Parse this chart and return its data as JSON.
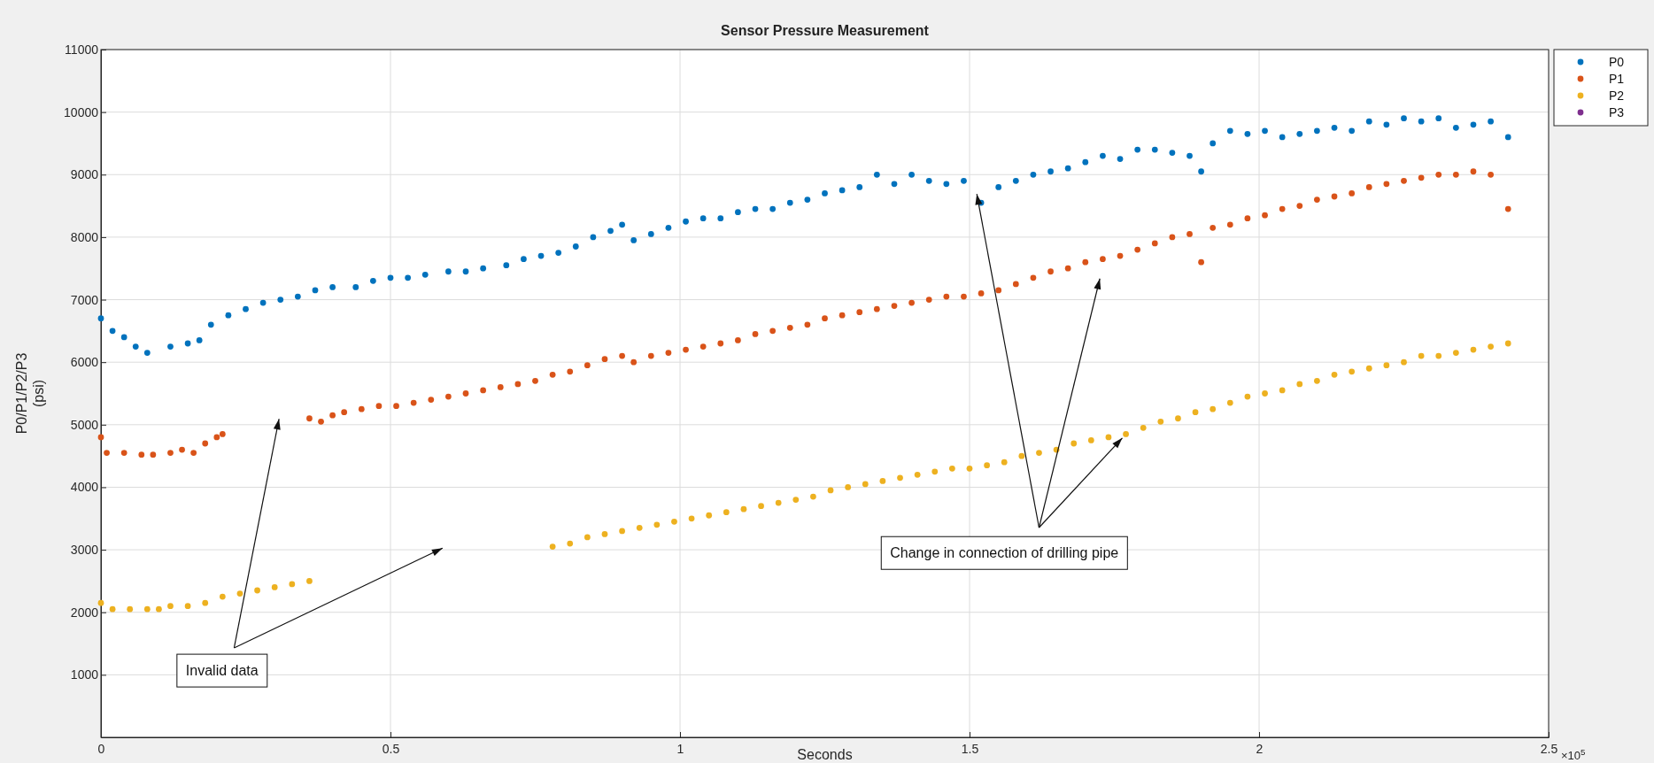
{
  "chart_data": {
    "type": "scatter",
    "title": "Sensor Pressure Measurement",
    "xlabel": "Seconds",
    "ylabel": "P0/P1/P2/P3\n(psi)",
    "xlim": [
      0,
      2.5
    ],
    "xticks": [
      0,
      0.5,
      1,
      1.5,
      2,
      2.5
    ],
    "ylim": [
      0,
      11000
    ],
    "yticks": [
      1000,
      2000,
      3000,
      4000,
      5000,
      6000,
      7000,
      8000,
      9000,
      10000,
      11000
    ],
    "grid": true,
    "legend": "top right",
    "marker": "circle",
    "annotations": [
      "×10$^{5}$",
      "Invalid data",
      {
        "text": "Change in connection of drilling pipe",
        "x": 1.77,
        "y": 4850
      }
    ],
    "series": [
      {
        "name": "P0",
        "color": "#0072bd",
        "x": [
          0,
          0.02,
          0.04,
          0.06,
          0.08,
          0.12,
          0.15,
          0.17,
          0.19,
          0.22,
          0.25,
          0.28,
          0.31,
          0.34,
          0.37,
          0.4,
          0.44,
          0.47,
          0.5,
          0.53,
          0.56,
          0.6,
          0.63,
          0.66,
          0.7,
          0.73,
          0.76,
          0.79,
          0.82,
          0.85,
          0.88,
          0.9,
          0.92,
          0.95,
          0.98,
          1.01,
          1.04,
          1.07,
          1.1,
          1.13,
          1.16,
          1.19,
          1.22,
          1.25,
          1.28,
          1.31,
          1.34,
          1.37,
          1.4,
          1.43,
          1.46,
          1.49,
          1.52,
          1.55,
          1.58,
          1.61,
          1.64,
          1.67,
          1.7,
          1.73,
          1.76,
          1.79,
          1.82,
          1.85,
          1.88,
          1.9,
          1.92,
          1.95,
          1.98,
          2.01,
          2.04,
          2.07,
          2.1,
          2.13,
          2.16,
          2.19,
          2.22,
          2.25,
          2.28,
          2.31,
          2.34,
          2.37,
          2.4,
          2.43
        ],
        "values": [
          6700,
          6500,
          6400,
          6250,
          6150,
          6250,
          6300,
          6350,
          6600,
          6750,
          6850,
          6950,
          7000,
          7050,
          7150,
          7200,
          7200,
          7300,
          7350,
          7350,
          7400,
          7450,
          7450,
          7500,
          7550,
          7650,
          7700,
          7750,
          7850,
          8000,
          8100,
          8200,
          7950,
          8050,
          8150,
          8250,
          8300,
          8300,
          8400,
          8450,
          8450,
          8550,
          8600,
          8700,
          8750,
          8800,
          9000,
          8850,
          9000,
          8900,
          8850,
          8900,
          8550,
          8800,
          8900,
          9000,
          9050,
          9100,
          9200,
          9300,
          9250,
          9400,
          9400,
          9350,
          9300,
          9050,
          9500,
          9700,
          9650,
          9700,
          9600,
          9650,
          9700,
          9750,
          9700,
          9850,
          9800,
          9900,
          9850,
          9900,
          9750,
          9800,
          9850,
          9600
        ]
      },
      {
        "name": "P1",
        "color": "#d95319",
        "x": [
          0,
          0.01,
          0.04,
          0.07,
          0.09,
          0.12,
          0.14,
          0.16,
          0.18,
          0.2,
          0.21,
          0.36,
          0.38,
          0.4,
          0.42,
          0.45,
          0.48,
          0.51,
          0.54,
          0.57,
          0.6,
          0.63,
          0.66,
          0.69,
          0.72,
          0.75,
          0.78,
          0.81,
          0.84,
          0.87,
          0.9,
          0.92,
          0.95,
          0.98,
          1.01,
          1.04,
          1.07,
          1.1,
          1.13,
          1.16,
          1.19,
          1.22,
          1.25,
          1.28,
          1.31,
          1.34,
          1.37,
          1.4,
          1.43,
          1.46,
          1.49,
          1.52,
          1.55,
          1.58,
          1.61,
          1.64,
          1.67,
          1.7,
          1.73,
          1.76,
          1.79,
          1.82,
          1.85,
          1.88,
          1.9,
          1.92,
          1.95,
          1.98,
          2.01,
          2.04,
          2.07,
          2.1,
          2.13,
          2.16,
          2.19,
          2.22,
          2.25,
          2.28,
          2.31,
          2.34,
          2.37,
          2.4,
          2.43
        ],
        "values": [
          4800,
          4550,
          4550,
          4520,
          4520,
          4550,
          4600,
          4550,
          4700,
          4800,
          4850,
          5100,
          5050,
          5150,
          5200,
          5250,
          5300,
          5300,
          5350,
          5400,
          5450,
          5500,
          5550,
          5600,
          5650,
          5700,
          5800,
          5850,
          5950,
          6050,
          6100,
          6000,
          6100,
          6150,
          6200,
          6250,
          6300,
          6350,
          6450,
          6500,
          6550,
          6600,
          6700,
          6750,
          6800,
          6850,
          6900,
          6950,
          7000,
          7050,
          7050,
          7100,
          7150,
          7250,
          7350,
          7450,
          7500,
          7600,
          7650,
          7700,
          7800,
          7900,
          8000,
          8050,
          7600,
          8150,
          8200,
          8300,
          8350,
          8450,
          8500,
          8600,
          8650,
          8700,
          8800,
          8850,
          8900,
          8950,
          9000,
          9000,
          9050,
          9000,
          8450
        ]
      },
      {
        "name": "P2",
        "color": "#edb120",
        "x": [
          0,
          0.02,
          0.05,
          0.08,
          0.1,
          0.12,
          0.15,
          0.18,
          0.21,
          0.24,
          0.27,
          0.3,
          0.33,
          0.36,
          0.78,
          0.81,
          0.84,
          0.87,
          0.9,
          0.93,
          0.96,
          0.99,
          1.02,
          1.05,
          1.08,
          1.11,
          1.14,
          1.17,
          1.2,
          1.23,
          1.26,
          1.29,
          1.32,
          1.35,
          1.38,
          1.41,
          1.44,
          1.47,
          1.5,
          1.53,
          1.56,
          1.59,
          1.62,
          1.65,
          1.68,
          1.71,
          1.74,
          1.77,
          1.8,
          1.83,
          1.86,
          1.89,
          1.92,
          1.95,
          1.98,
          2.01,
          2.04,
          2.07,
          2.1,
          2.13,
          2.16,
          2.19,
          2.22,
          2.25,
          2.28,
          2.31,
          2.34,
          2.37,
          2.4,
          2.43
        ],
        "values": [
          2150,
          2050,
          2050,
          2050,
          2050,
          2100,
          2100,
          2150,
          2250,
          2300,
          2350,
          2400,
          2450,
          2500,
          3050,
          3100,
          3200,
          3250,
          3300,
          3350,
          3400,
          3450,
          3500,
          3550,
          3600,
          3650,
          3700,
          3750,
          3800,
          3850,
          3950,
          4000,
          4050,
          4100,
          4150,
          4200,
          4250,
          4300,
          4300,
          4350,
          4400,
          4500,
          4550,
          4600,
          4700,
          4750,
          4800,
          4850,
          4950,
          5050,
          5100,
          5200,
          5250,
          5350,
          5450,
          5500,
          5550,
          5650,
          5700,
          5800,
          5850,
          5900,
          5950,
          6000,
          6100,
          6100,
          6150,
          6200,
          6250,
          6300
        ]
      },
      {
        "name": "P3",
        "color": "#7e2f8e"
      }
    ]
  }
}
